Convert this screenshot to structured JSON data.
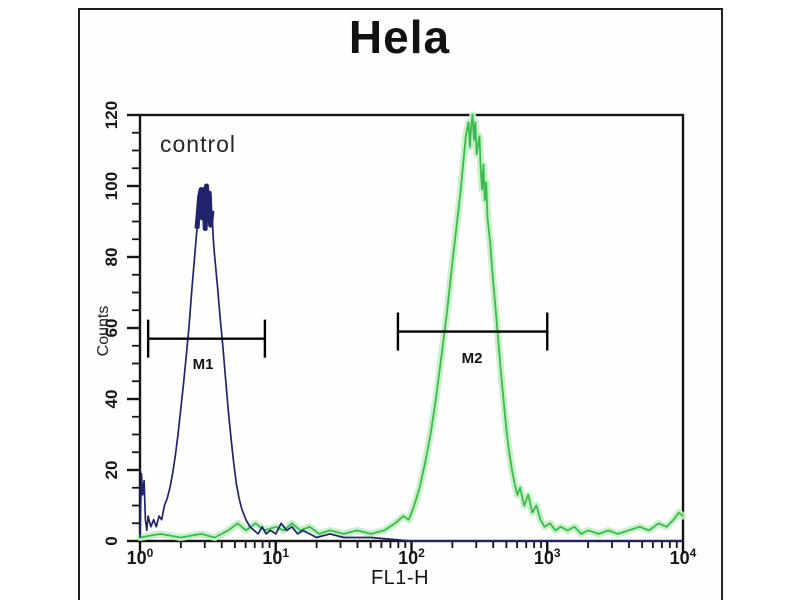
{
  "title": "Hela",
  "annotation": "control",
  "axes": {
    "x_label": "FL1-H",
    "y_label": "Counts",
    "x_scale": "log10",
    "x_tick_exponents": [
      0,
      1,
      2,
      3,
      4
    ],
    "y_ticks": [
      0,
      20,
      40,
      60,
      80,
      100,
      120
    ],
    "y_minor_step": 5,
    "x_range_decades": [
      0,
      4
    ],
    "y_range": [
      0,
      120
    ]
  },
  "colors": {
    "control_trace": "#23236b",
    "control_cap": "#22226e",
    "sample_trace": "#3bbb4b",
    "sample_glow": "#c2eec5",
    "axis": "#141414",
    "marker": "#000000"
  },
  "markers": [
    {
      "label": "M1",
      "from_decade": 0.06,
      "to_decade": 0.92,
      "counts": 57
    },
    {
      "label": "M2",
      "from_decade": 1.9,
      "to_decade": 3.0,
      "counts": 59
    }
  ],
  "chart_data": {
    "type": "line",
    "subtype": "flow-cytometry-histogram-overlay",
    "title": "Hela",
    "xlabel": "FL1-H",
    "ylabel": "Counts",
    "x_unit": "decade (log10 of FL1-H)",
    "xlim_decades": [
      0,
      4
    ],
    "ylim": [
      0,
      120
    ],
    "grid": false,
    "legend": "none (in-plot annotation: control)",
    "series": [
      {
        "name": "control",
        "color": "#23236b",
        "peak_fl1h": 3,
        "peak_counts": 100,
        "points": [
          [
            0.0,
            1
          ],
          [
            0.01,
            19
          ],
          [
            0.02,
            13
          ],
          [
            0.03,
            17
          ],
          [
            0.04,
            6
          ],
          [
            0.05,
            3
          ],
          [
            0.06,
            7
          ],
          [
            0.08,
            4
          ],
          [
            0.1,
            6
          ],
          [
            0.12,
            4
          ],
          [
            0.14,
            7
          ],
          [
            0.16,
            6
          ],
          [
            0.18,
            10
          ],
          [
            0.2,
            12
          ],
          [
            0.22,
            15
          ],
          [
            0.24,
            19
          ],
          [
            0.26,
            24
          ],
          [
            0.28,
            30
          ],
          [
            0.3,
            37
          ],
          [
            0.32,
            44
          ],
          [
            0.34,
            52
          ],
          [
            0.36,
            60
          ],
          [
            0.38,
            70
          ],
          [
            0.4,
            79
          ],
          [
            0.42,
            88
          ],
          [
            0.44,
            97
          ],
          [
            0.45,
            99
          ],
          [
            0.46,
            91
          ],
          [
            0.47,
            99
          ],
          [
            0.48,
            88
          ],
          [
            0.49,
            100
          ],
          [
            0.5,
            93
          ],
          [
            0.51,
            98
          ],
          [
            0.52,
            89
          ],
          [
            0.53,
            93
          ],
          [
            0.54,
            85
          ],
          [
            0.55,
            80
          ],
          [
            0.57,
            72
          ],
          [
            0.59,
            63
          ],
          [
            0.61,
            55
          ],
          [
            0.63,
            46
          ],
          [
            0.65,
            37
          ],
          [
            0.67,
            29
          ],
          [
            0.69,
            22
          ],
          [
            0.71,
            16
          ],
          [
            0.73,
            12
          ],
          [
            0.75,
            9
          ],
          [
            0.78,
            6
          ],
          [
            0.81,
            4
          ],
          [
            0.84,
            3
          ],
          [
            0.87,
            2
          ],
          [
            0.9,
            4
          ],
          [
            0.93,
            2
          ],
          [
            0.96,
            3
          ],
          [
            1.0,
            2
          ],
          [
            1.04,
            5
          ],
          [
            1.08,
            3
          ],
          [
            1.12,
            4
          ],
          [
            1.16,
            2
          ],
          [
            1.2,
            3
          ],
          [
            1.25,
            2
          ],
          [
            1.3,
            1
          ],
          [
            1.4,
            2
          ],
          [
            1.5,
            1
          ],
          [
            1.7,
            1
          ],
          [
            2.0,
            0
          ],
          [
            2.5,
            0
          ],
          [
            3.0,
            0
          ],
          [
            3.5,
            0
          ],
          [
            4.0,
            0
          ]
        ]
      },
      {
        "name": "green",
        "color": "#3bbb4b",
        "peak_fl1h": 270,
        "peak_counts": 120,
        "points": [
          [
            0.0,
            1
          ],
          [
            0.15,
            2
          ],
          [
            0.3,
            1
          ],
          [
            0.45,
            2
          ],
          [
            0.55,
            1
          ],
          [
            0.65,
            3
          ],
          [
            0.72,
            5
          ],
          [
            0.78,
            3
          ],
          [
            0.85,
            5
          ],
          [
            0.92,
            3
          ],
          [
            1.0,
            4
          ],
          [
            1.06,
            3
          ],
          [
            1.12,
            5
          ],
          [
            1.18,
            3
          ],
          [
            1.25,
            4
          ],
          [
            1.32,
            2
          ],
          [
            1.4,
            3
          ],
          [
            1.5,
            2
          ],
          [
            1.6,
            3
          ],
          [
            1.7,
            2
          ],
          [
            1.8,
            3
          ],
          [
            1.88,
            5
          ],
          [
            1.94,
            7
          ],
          [
            1.98,
            6
          ],
          [
            2.02,
            10
          ],
          [
            2.06,
            15
          ],
          [
            2.1,
            22
          ],
          [
            2.14,
            30
          ],
          [
            2.18,
            40
          ],
          [
            2.22,
            52
          ],
          [
            2.26,
            64
          ],
          [
            2.3,
            78
          ],
          [
            2.33,
            88
          ],
          [
            2.36,
            98
          ],
          [
            2.38,
            106
          ],
          [
            2.4,
            114
          ],
          [
            2.42,
            118
          ],
          [
            2.43,
            111
          ],
          [
            2.44,
            117
          ],
          [
            2.45,
            120
          ],
          [
            2.46,
            113
          ],
          [
            2.47,
            118
          ],
          [
            2.48,
            109
          ],
          [
            2.5,
            114
          ],
          [
            2.51,
            105
          ],
          [
            2.52,
            99
          ],
          [
            2.53,
            106
          ],
          [
            2.54,
            96
          ],
          [
            2.55,
            101
          ],
          [
            2.56,
            91
          ],
          [
            2.58,
            84
          ],
          [
            2.6,
            74
          ],
          [
            2.62,
            65
          ],
          [
            2.64,
            56
          ],
          [
            2.66,
            47
          ],
          [
            2.68,
            39
          ],
          [
            2.7,
            31
          ],
          [
            2.72,
            25
          ],
          [
            2.74,
            20
          ],
          [
            2.76,
            16
          ],
          [
            2.78,
            13
          ],
          [
            2.8,
            15
          ],
          [
            2.83,
            10
          ],
          [
            2.86,
            13
          ],
          [
            2.89,
            8
          ],
          [
            2.92,
            10
          ],
          [
            2.95,
            6
          ],
          [
            2.98,
            4
          ],
          [
            3.02,
            5
          ],
          [
            3.06,
            3
          ],
          [
            3.1,
            4
          ],
          [
            3.15,
            3
          ],
          [
            3.2,
            4
          ],
          [
            3.25,
            2
          ],
          [
            3.3,
            3
          ],
          [
            3.38,
            2
          ],
          [
            3.45,
            3
          ],
          [
            3.52,
            2
          ],
          [
            3.6,
            3
          ],
          [
            3.68,
            4
          ],
          [
            3.75,
            3
          ],
          [
            3.82,
            5
          ],
          [
            3.88,
            4
          ],
          [
            3.93,
            6
          ],
          [
            3.97,
            8
          ],
          [
            4.0,
            7
          ]
        ]
      }
    ]
  }
}
